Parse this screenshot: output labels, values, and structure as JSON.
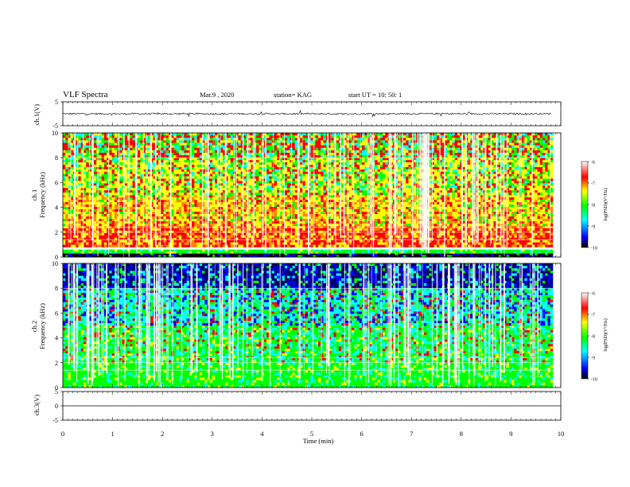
{
  "header": {
    "title": "VLF Spectra",
    "date": "Mar.9  , 2020",
    "station": "station= KAG",
    "start": "start  UT  =   10: 50: 1"
  },
  "chart_data": [
    {
      "type": "line",
      "panel": "ch1-waveform",
      "ylabel": "ch.1(V)",
      "ylim": [
        -5,
        5
      ],
      "yticks": [
        "5",
        "-5"
      ],
      "xlim": [
        0,
        10
      ],
      "baseline": 0,
      "color": "#000000"
    },
    {
      "type": "heatmap",
      "panel": "ch1-spectrogram",
      "ylabel_channel": "ch.1",
      "ylabel": "Frequency (kHz)",
      "ylim": [
        0,
        10
      ],
      "yticks": [
        "0",
        "2",
        "4",
        "6",
        "8",
        "10"
      ],
      "xlim": [
        0,
        10
      ],
      "colorbar": {
        "label": "log(PSD)(V²/Hz)",
        "range": [
          -10,
          -6
        ],
        "ticks": [
          "-6",
          "-7",
          "-8",
          "-9",
          "-10"
        ]
      },
      "bands_khz": [
        {
          "from": 0.0,
          "to": 0.3,
          "level": "black"
        },
        {
          "from": 0.3,
          "to": 0.6,
          "level": "green"
        },
        {
          "from": 0.8,
          "to": 2.5,
          "level": "red"
        },
        {
          "from": 2.5,
          "to": 5.0,
          "level": "orange"
        },
        {
          "from": 5.0,
          "to": 8.0,
          "level": "yellow"
        },
        {
          "from": 8.0,
          "to": 10.0,
          "level": "mixed"
        }
      ]
    },
    {
      "type": "heatmap",
      "panel": "ch2-spectrogram",
      "ylabel_channel": "ch.2",
      "ylabel": "Frequency (kHz)",
      "ylim": [
        0,
        10
      ],
      "yticks": [
        "0",
        "2",
        "4",
        "6",
        "8",
        "10"
      ],
      "xlim": [
        0,
        10
      ],
      "colorbar": {
        "label": "log(PSD)(V²/Hz)",
        "range": [
          -10,
          -6
        ],
        "ticks": [
          "-6",
          "-7",
          "-8",
          "-9",
          "-10"
        ]
      },
      "bands_khz": [
        {
          "from": 0.0,
          "to": 2.0,
          "level": "green"
        },
        {
          "from": 2.0,
          "to": 5.0,
          "level": "green-cyan"
        },
        {
          "from": 5.0,
          "to": 8.0,
          "level": "cyan-blue"
        },
        {
          "from": 8.0,
          "to": 10.0,
          "level": "navy"
        }
      ]
    },
    {
      "type": "line",
      "panel": "ch3-waveform",
      "ylabel": "ch.3(V)",
      "ylim": [
        -5,
        5
      ],
      "yticks": [
        "5",
        "0",
        "-5"
      ],
      "xlim": [
        0,
        10
      ],
      "baseline": 0,
      "color": "#000000"
    }
  ],
  "xaxis": {
    "label": "Time  (min)",
    "ticks": [
      "0",
      "1",
      "2",
      "3",
      "4",
      "5",
      "6",
      "7",
      "8",
      "9",
      "10"
    ],
    "range": [
      0,
      10
    ]
  },
  "colormap": [
    "#000000",
    "#0000ff",
    "#00ffff",
    "#00ff00",
    "#ffff00",
    "#ff0000",
    "#ffffff"
  ]
}
